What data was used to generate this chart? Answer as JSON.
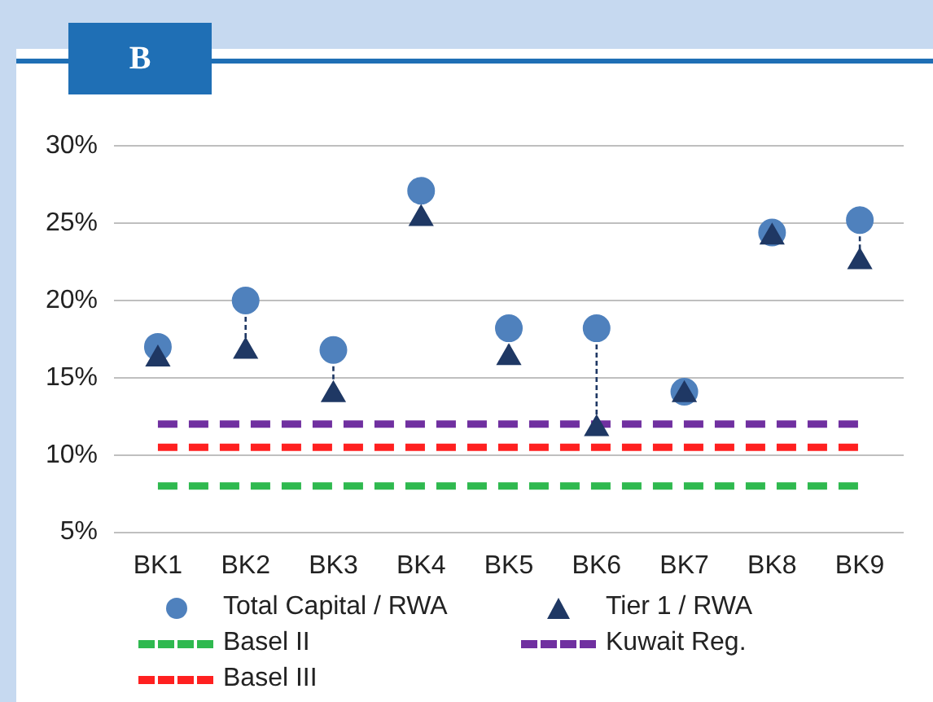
{
  "chart_data": {
    "type": "scatter",
    "title": "B",
    "categories": [
      "BK1",
      "BK2",
      "BK3",
      "BK4",
      "BK5",
      "BK6",
      "BK7",
      "BK8",
      "BK9"
    ],
    "ylim": [
      5,
      30
    ],
    "yticks": [
      {
        "value": 5,
        "label": "5%"
      },
      {
        "value": 10,
        "label": "10%"
      },
      {
        "value": 15,
        "label": "15%"
      },
      {
        "value": 20,
        "label": "20%"
      },
      {
        "value": 25,
        "label": "25%"
      },
      {
        "value": 30,
        "label": "30%"
      }
    ],
    "grid": "y",
    "legend": "bottom",
    "series": [
      {
        "name": "Total Capital / RWA",
        "marker": "circle",
        "color": "#4f81bd",
        "values": [
          17.0,
          20.0,
          16.8,
          27.1,
          18.2,
          18.2,
          14.1,
          24.4,
          25.2
        ]
      },
      {
        "name": "Tier 1 / RWA",
        "marker": "triangle",
        "color": "#1f3864",
        "values": [
          16.2,
          16.7,
          13.9,
          25.3,
          16.3,
          11.7,
          13.9,
          24.1,
          22.5
        ]
      },
      {
        "name": "Basel II",
        "type": "line",
        "marker": "none",
        "line_style": "dashed",
        "color": "#2fb94f",
        "values": [
          8,
          8,
          8,
          8,
          8,
          8,
          8,
          8,
          8
        ]
      },
      {
        "name": "Kuwait Reg.",
        "type": "line",
        "marker": "none",
        "line_style": "dashed",
        "color": "#7030a0",
        "values": [
          12,
          12,
          12,
          12,
          12,
          12,
          12,
          12,
          12
        ]
      },
      {
        "name": "Basel III",
        "type": "line",
        "marker": "none",
        "line_style": "dashed",
        "color": "#ff2020",
        "values": [
          10.5,
          10.5,
          10.5,
          10.5,
          10.5,
          10.5,
          10.5,
          10.5,
          10.5
        ]
      }
    ]
  }
}
